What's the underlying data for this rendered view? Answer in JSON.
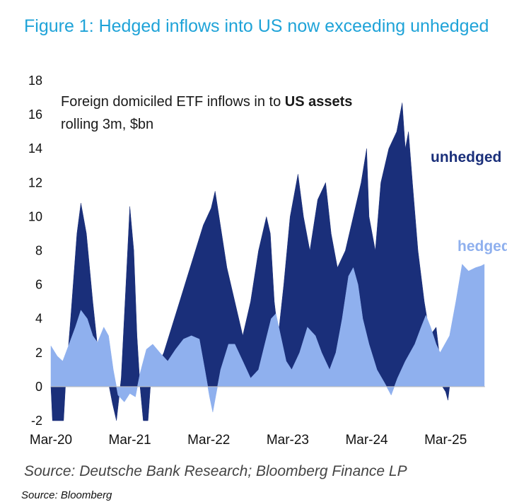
{
  "figure": {
    "title": "Figure 1: Hedged inflows into US now exceeding unhedged",
    "source_main": "Source: Deutsche Bank Research; Bloomberg Finance LP",
    "source_secondary": "Source: Bloomberg"
  },
  "chart_data": {
    "type": "area",
    "title": "Foreign domiciled ETF inflows in to US assets rolling 3m, $bn",
    "annotation": {
      "prefix": "Foreign domiciled ETF inflows in to ",
      "bold": "US assets",
      "line2": "rolling 3m, $bn"
    },
    "xlabel": "",
    "ylabel": "",
    "xlim": [
      2020.17,
      2025.67
    ],
    "ylim": [
      -2,
      18
    ],
    "y_ticks": [
      18,
      16,
      14,
      12,
      10,
      8,
      6,
      4,
      2,
      0,
      -2
    ],
    "x_tick_labels": [
      "Mar-20",
      "Mar-21",
      "Mar-22",
      "Mar-23",
      "Mar-24",
      "Mar-25"
    ],
    "x_tick_values": [
      2020.17,
      2021.17,
      2022.17,
      2023.17,
      2024.17,
      2025.17
    ],
    "series": [
      {
        "name": "unhedged",
        "color": "#1a2f7a",
        "points": [
          [
            2020.17,
            0
          ],
          [
            2020.19,
            -2.0
          ],
          [
            2020.33,
            -2.0
          ],
          [
            2020.36,
            0.5
          ],
          [
            2020.42,
            4.0
          ],
          [
            2020.5,
            9.0
          ],
          [
            2020.55,
            10.8
          ],
          [
            2020.62,
            9.0
          ],
          [
            2020.7,
            5.0
          ],
          [
            2020.78,
            1.5
          ],
          [
            2020.9,
            0.2
          ],
          [
            2020.95,
            -1.0
          ],
          [
            2021.0,
            -2.0
          ],
          [
            2021.06,
            0.5
          ],
          [
            2021.12,
            6.0
          ],
          [
            2021.17,
            10.6
          ],
          [
            2021.22,
            8.0
          ],
          [
            2021.26,
            3.0
          ],
          [
            2021.3,
            0
          ],
          [
            2021.34,
            -2.0
          ],
          [
            2021.4,
            -2.0
          ],
          [
            2021.43,
            0
          ],
          [
            2021.5,
            1.0
          ],
          [
            2021.6,
            2.0
          ],
          [
            2021.7,
            3.5
          ],
          [
            2021.8,
            5.0
          ],
          [
            2021.9,
            6.5
          ],
          [
            2022.0,
            8.0
          ],
          [
            2022.1,
            9.5
          ],
          [
            2022.2,
            10.5
          ],
          [
            2022.25,
            11.5
          ],
          [
            2022.3,
            10.0
          ],
          [
            2022.4,
            7.0
          ],
          [
            2022.5,
            5.0
          ],
          [
            2022.6,
            3.0
          ],
          [
            2022.7,
            5.0
          ],
          [
            2022.8,
            8.0
          ],
          [
            2022.9,
            10.0
          ],
          [
            2022.95,
            9.0
          ],
          [
            2023.0,
            5.0
          ],
          [
            2023.05,
            3.0
          ],
          [
            2023.12,
            6.0
          ],
          [
            2023.2,
            10.0
          ],
          [
            2023.3,
            12.5
          ],
          [
            2023.37,
            10.0
          ],
          [
            2023.45,
            8.0
          ],
          [
            2023.55,
            11.0
          ],
          [
            2023.65,
            12.0
          ],
          [
            2023.72,
            9.0
          ],
          [
            2023.8,
            7.0
          ],
          [
            2023.9,
            8.0
          ],
          [
            2024.0,
            10.0
          ],
          [
            2024.1,
            12.0
          ],
          [
            2024.17,
            14.0
          ],
          [
            2024.2,
            10.0
          ],
          [
            2024.28,
            8.0
          ],
          [
            2024.35,
            12.0
          ],
          [
            2024.45,
            14.0
          ],
          [
            2024.55,
            15.0
          ],
          [
            2024.62,
            16.7
          ],
          [
            2024.66,
            14.0
          ],
          [
            2024.7,
            15.0
          ],
          [
            2024.75,
            12.0
          ],
          [
            2024.82,
            8.0
          ],
          [
            2024.9,
            5.0
          ],
          [
            2024.97,
            3.0
          ],
          [
            2025.05,
            3.5
          ],
          [
            2025.1,
            1.5
          ],
          [
            2025.13,
            0
          ],
          [
            2025.17,
            -0.3
          ],
          [
            2025.2,
            -0.8
          ],
          [
            2025.22,
            0
          ]
        ]
      },
      {
        "name": "hedged",
        "color": "#8fb0ee",
        "points": [
          [
            2020.17,
            2.4
          ],
          [
            2020.25,
            1.8
          ],
          [
            2020.32,
            1.5
          ],
          [
            2020.4,
            2.5
          ],
          [
            2020.48,
            3.5
          ],
          [
            2020.55,
            4.5
          ],
          [
            2020.63,
            4.0
          ],
          [
            2020.7,
            3.0
          ],
          [
            2020.76,
            2.6
          ],
          [
            2020.84,
            3.5
          ],
          [
            2020.9,
            3.0
          ],
          [
            2020.96,
            1.0
          ],
          [
            2021.02,
            -0.5
          ],
          [
            2021.1,
            -0.9
          ],
          [
            2021.17,
            -0.4
          ],
          [
            2021.24,
            -0.6
          ],
          [
            2021.3,
            0.8
          ],
          [
            2021.38,
            2.2
          ],
          [
            2021.46,
            2.5
          ],
          [
            2021.55,
            2.0
          ],
          [
            2021.65,
            1.5
          ],
          [
            2021.75,
            2.2
          ],
          [
            2021.85,
            2.8
          ],
          [
            2021.95,
            3.0
          ],
          [
            2022.05,
            2.8
          ],
          [
            2022.12,
            1.0
          ],
          [
            2022.18,
            -0.6
          ],
          [
            2022.22,
            -1.5
          ],
          [
            2022.26,
            -0.5
          ],
          [
            2022.32,
            1.0
          ],
          [
            2022.42,
            2.5
          ],
          [
            2022.5,
            2.5
          ],
          [
            2022.6,
            1.5
          ],
          [
            2022.7,
            0.5
          ],
          [
            2022.8,
            1.0
          ],
          [
            2022.88,
            2.5
          ],
          [
            2022.96,
            4.0
          ],
          [
            2023.02,
            4.3
          ],
          [
            2023.08,
            3.0
          ],
          [
            2023.15,
            1.5
          ],
          [
            2023.22,
            1.0
          ],
          [
            2023.32,
            2.0
          ],
          [
            2023.42,
            3.5
          ],
          [
            2023.52,
            3.0
          ],
          [
            2023.6,
            2.0
          ],
          [
            2023.7,
            1.0
          ],
          [
            2023.78,
            2.0
          ],
          [
            2023.86,
            4.0
          ],
          [
            2023.94,
            6.5
          ],
          [
            2024.0,
            7.0
          ],
          [
            2024.06,
            6.0
          ],
          [
            2024.12,
            4.0
          ],
          [
            2024.2,
            2.5
          ],
          [
            2024.3,
            1.0
          ],
          [
            2024.4,
            0.2
          ],
          [
            2024.48,
            -0.5
          ],
          [
            2024.56,
            0.5
          ],
          [
            2024.66,
            1.5
          ],
          [
            2024.78,
            2.5
          ],
          [
            2024.86,
            3.5
          ],
          [
            2024.92,
            4.2
          ],
          [
            2024.98,
            3.5
          ],
          [
            2025.05,
            2.5
          ],
          [
            2025.1,
            2.0
          ],
          [
            2025.16,
            2.5
          ],
          [
            2025.22,
            3.0
          ],
          [
            2025.3,
            5.0
          ],
          [
            2025.38,
            7.2
          ],
          [
            2025.46,
            6.8
          ],
          [
            2025.55,
            7.0
          ],
          [
            2025.62,
            7.1
          ],
          [
            2025.66,
            7.2
          ]
        ]
      }
    ],
    "series_labels": {
      "unhedged": "unhedged",
      "hedged": "hedged"
    }
  }
}
